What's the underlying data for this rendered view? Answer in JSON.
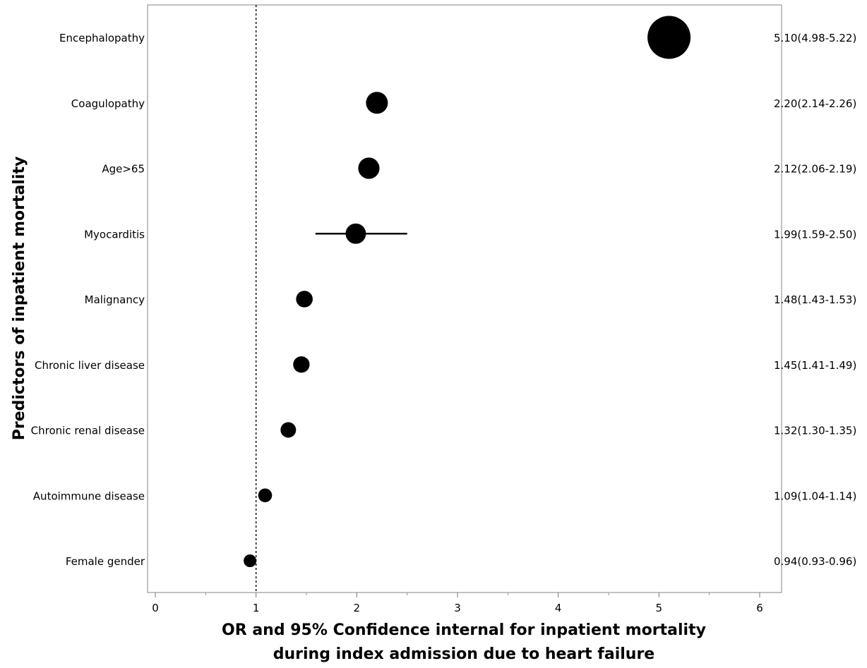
{
  "chart_data": {
    "type": "scatter",
    "subtype": "forest-plot",
    "title": "",
    "xlabel_lines": [
      "OR and 95% Confidence internal for inpatient mortality",
      "during index admission due to heart failure"
    ],
    "ylabel": "Predictors of inpatient mortality",
    "xlim": [
      0,
      6
    ],
    "x_ticks": [
      0,
      1,
      2,
      3,
      4,
      5,
      6
    ],
    "x_tick_labels": [
      "0",
      "1",
      "2",
      "3",
      "4",
      "5",
      "6"
    ],
    "reference_line": 1,
    "grid": false,
    "marker_color": "#000000",
    "categories": [
      "Encephalopathy",
      "Coagulopathy",
      "Age>65",
      "Myocarditis",
      "Malignancy",
      "Chronic liver disease",
      "Chronic renal disease",
      "Autoimmune disease",
      "Female gender"
    ],
    "series": [
      {
        "or": [
          5.1,
          2.2,
          2.12,
          1.99,
          1.48,
          1.45,
          1.32,
          1.09,
          0.94
        ],
        "lower": [
          4.98,
          2.14,
          2.06,
          1.59,
          1.43,
          1.41,
          1.3,
          1.04,
          0.93
        ],
        "upper": [
          5.22,
          2.26,
          2.19,
          2.5,
          1.53,
          1.49,
          1.35,
          1.14,
          0.96
        ]
      }
    ],
    "or_labels": [
      "5.10(4.98-5.22)",
      "2.20(2.14-2.26)",
      "2.12(2.06-2.19)",
      "1.99(1.59-2.50)",
      "1.48(1.43-1.53)",
      "1.45(1.41-1.49)",
      "1.32(1.30-1.35)",
      "1.09(1.04-1.14)",
      "0.94(0.93-0.96)"
    ]
  }
}
